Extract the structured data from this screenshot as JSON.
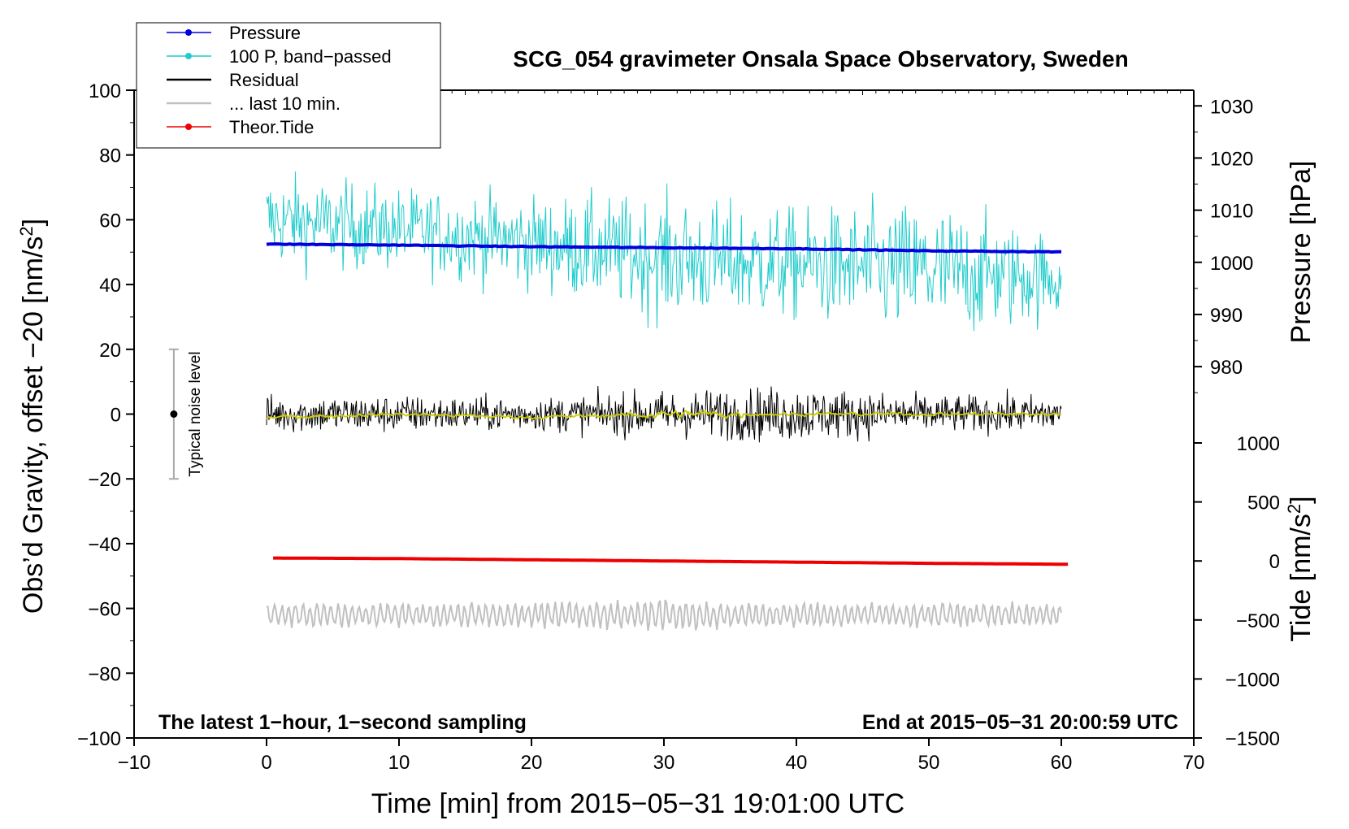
{
  "chart_data": {
    "type": "line",
    "title": "SCG_054 gravimeter Onsala Space Observatory, Sweden",
    "xlabel": "Time [min] from 2015−05−31 19:01:00 UTC",
    "ylabel_left": "Obs’d Gravity, offset −20 [nm/s",
    "ylabel_left_unit_sup": "2",
    "ylabel_left_suffix": "]",
    "ylabel_right_pressure": "Pressure [hPa]",
    "ylabel_right_tide": "Tide [nm/s",
    "ylabel_right_tide_sup": "2",
    "ylabel_right_tide_suffix": "]",
    "xlim": [
      -10,
      70
    ],
    "ylim_left": [
      -100,
      100
    ],
    "pressure_axis_range": [
      973,
      1033
    ],
    "tide_axis_range": [
      -1500,
      1000
    ],
    "x_ticks": [
      "−10",
      "0",
      "10",
      "20",
      "30",
      "40",
      "50",
      "60",
      "70"
    ],
    "left_ticks": [
      "−100",
      "−80",
      "−60",
      "−40",
      "−20",
      "0",
      "20",
      "40",
      "60",
      "80",
      "100"
    ],
    "pressure_ticks": [
      "980",
      "990",
      "1000",
      "1010",
      "1020",
      "1030"
    ],
    "tide_ticks": [
      "−1500",
      "−1000",
      "−500",
      "0",
      "500",
      "1000"
    ],
    "bottom_left_note": "The latest 1−hour, 1−second sampling",
    "bottom_right_note": "End at 2015−05−31 20:00:59 UTC",
    "noise_label": "Typical noise level",
    "noise_bar": {
      "x": -7,
      "center": 0,
      "low": -20,
      "high": 20
    },
    "legend": [
      {
        "label": "Pressure",
        "color": "#0000dd",
        "marker": true
      },
      {
        "label": "100 P, band−passed",
        "color": "#22cccc",
        "marker": true
      },
      {
        "label": "Residual",
        "color": "#000000",
        "marker": false
      },
      {
        "label": "... last 10 min.",
        "color": "#c0c0c0",
        "marker": false
      },
      {
        "label": "Theor.Tide",
        "color": "#ee0000",
        "marker": true
      }
    ],
    "series": [
      {
        "name": "Pressure",
        "axis": "pressure_hPa",
        "color": "#0000dd",
        "x": [
          0,
          10,
          20,
          30,
          40,
          50,
          60
        ],
        "values": [
          1003.5,
          1003.3,
          1003.0,
          1002.8,
          1002.6,
          1002.2,
          1002.0
        ]
      },
      {
        "name": "100 P, band−passed",
        "axis": "left_nm_s2",
        "color": "#22cccc",
        "x": [
          0,
          10,
          20,
          30,
          40,
          50,
          60
        ],
        "values": [
          60,
          57,
          53,
          48,
          46,
          44,
          42
        ],
        "amplitude": [
          10,
          9,
          10,
          13,
          12,
          15,
          9
        ]
      },
      {
        "name": "Residual",
        "axis": "left_nm_s2",
        "color": "#000000",
        "x": [
          0,
          10,
          20,
          30,
          40,
          50,
          60
        ],
        "values": [
          0,
          0,
          0,
          0,
          0,
          0,
          0
        ],
        "amplitude": [
          4,
          4,
          3.5,
          5,
          6,
          4,
          4
        ]
      },
      {
        "name": "Residual (smoothed)",
        "axis": "left_nm_s2",
        "color": "#cccc00",
        "x": [
          0,
          10,
          20,
          30,
          40,
          50,
          60
        ],
        "values": [
          -1,
          0,
          -1,
          0,
          0,
          0,
          0
        ]
      },
      {
        "name": "... last 10 min.",
        "axis": "left_nm_s2",
        "color": "#c0c0c0",
        "x": [
          0,
          10,
          20,
          30,
          40,
          50,
          60
        ],
        "values": [
          -62,
          -62,
          -62,
          -62,
          -62,
          -62,
          -62
        ],
        "amplitude": [
          3,
          3,
          3,
          4,
          3,
          3,
          3
        ]
      },
      {
        "name": "Theor.Tide",
        "axis": "tide_nm_s2",
        "color": "#ee0000",
        "x": [
          0,
          10,
          20,
          30,
          40,
          50,
          60.5
        ],
        "values": [
          25,
          20,
          10,
          0,
          -10,
          -20,
          -28
        ]
      }
    ]
  }
}
